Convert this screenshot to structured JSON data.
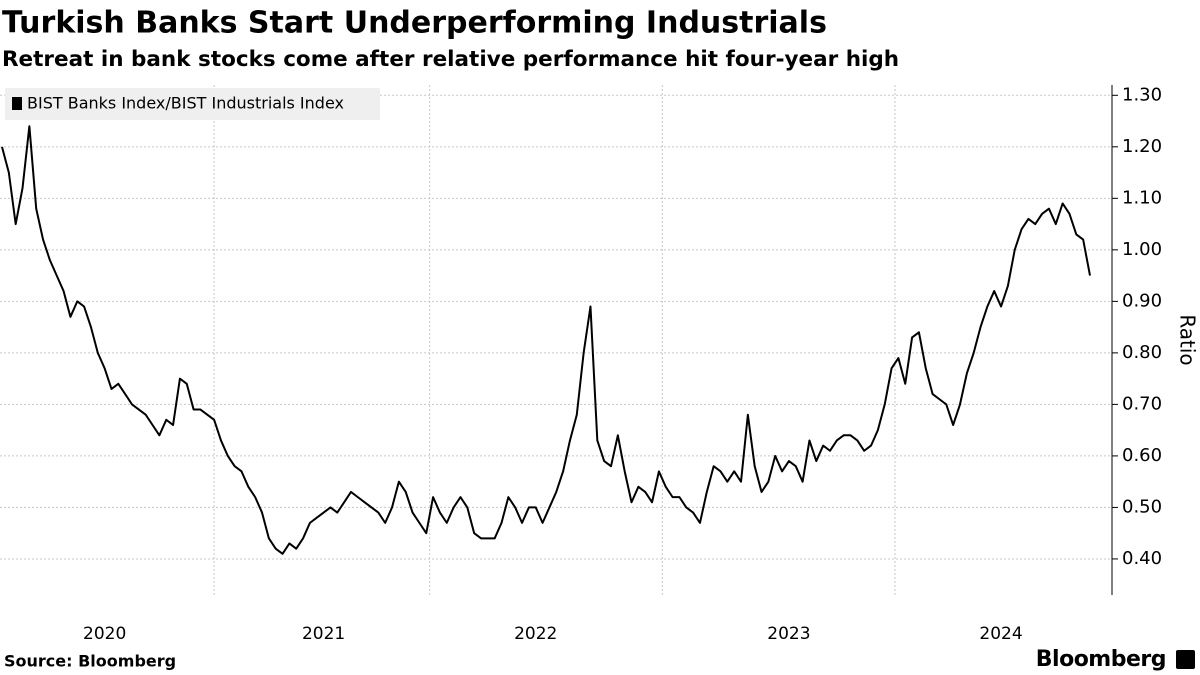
{
  "chart_data": {
    "type": "line",
    "title": "Turkish Banks Start Underperforming Industrials",
    "subtitle": "Retreat in bank stocks come after relative performance hit four-year high",
    "y_label": "Ratio",
    "source": "Source: Bloomberg",
    "brand": "Bloomberg",
    "categories": [
      null,
      null,
      null,
      null,
      null,
      null,
      null,
      null,
      null,
      null,
      null,
      null,
      null,
      null,
      null,
      "2020",
      null,
      null,
      null,
      null,
      null,
      null,
      null,
      null,
      null,
      null,
      null,
      null,
      null,
      null,
      null,
      null,
      null,
      null,
      null,
      null,
      null,
      null,
      null,
      null,
      null,
      null,
      null,
      null,
      null,
      null,
      null,
      "2021",
      null,
      null,
      null,
      null,
      null,
      null,
      null,
      null,
      null,
      null,
      null,
      null,
      null,
      null,
      null,
      null,
      null,
      null,
      null,
      null,
      null,
      null,
      null,
      null,
      null,
      null,
      null,
      null,
      null,
      null,
      "2022",
      null,
      null,
      null,
      null,
      null,
      null,
      null,
      null,
      null,
      null,
      null,
      null,
      null,
      null,
      null,
      null,
      null,
      null,
      null,
      null,
      null,
      null,
      null,
      null,
      null,
      null,
      null,
      null,
      null,
      null,
      null,
      null,
      null,
      null,
      null,
      null,
      "2023",
      null,
      null,
      null,
      null,
      null,
      null,
      null,
      null,
      null,
      null,
      null,
      null,
      null,
      null,
      null,
      null,
      null,
      null,
      null,
      null,
      null,
      null,
      null,
      null,
      null,
      null,
      null,
      null,
      null,
      null,
      "2024",
      null,
      null,
      null,
      null,
      null,
      null,
      null,
      null,
      null,
      null,
      null,
      null,
      null
    ],
    "series": [
      {
        "name": "BIST Banks Index/BIST Industrials Index",
        "color": "#000000",
        "values": [
          1.2,
          1.15,
          1.05,
          1.12,
          1.24,
          1.08,
          1.02,
          0.98,
          0.95,
          0.92,
          0.87,
          0.9,
          0.89,
          0.85,
          0.8,
          0.77,
          0.73,
          0.74,
          0.72,
          0.7,
          0.69,
          0.68,
          0.66,
          0.64,
          0.67,
          0.66,
          0.75,
          0.74,
          0.69,
          0.69,
          0.68,
          0.67,
          0.63,
          0.6,
          0.58,
          0.57,
          0.54,
          0.52,
          0.49,
          0.44,
          0.42,
          0.41,
          0.43,
          0.42,
          0.44,
          0.47,
          0.48,
          0.49,
          0.5,
          0.49,
          0.51,
          0.53,
          0.52,
          0.51,
          0.5,
          0.49,
          0.47,
          0.5,
          0.55,
          0.53,
          0.49,
          0.47,
          0.45,
          0.52,
          0.49,
          0.47,
          0.5,
          0.52,
          0.5,
          0.45,
          0.44,
          0.44,
          0.44,
          0.47,
          0.52,
          0.5,
          0.47,
          0.5,
          0.5,
          0.47,
          0.5,
          0.53,
          0.57,
          0.63,
          0.68,
          0.8,
          0.89,
          0.63,
          0.59,
          0.58,
          0.64,
          0.57,
          0.51,
          0.54,
          0.53,
          0.51,
          0.57,
          0.54,
          0.52,
          0.52,
          0.5,
          0.49,
          0.47,
          0.53,
          0.58,
          0.57,
          0.55,
          0.57,
          0.55,
          0.68,
          0.58,
          0.53,
          0.55,
          0.6,
          0.57,
          0.59,
          0.58,
          0.55,
          0.63,
          0.59,
          0.62,
          0.61,
          0.63,
          0.64,
          0.64,
          0.63,
          0.61,
          0.62,
          0.65,
          0.7,
          0.77,
          0.79,
          0.74,
          0.83,
          0.84,
          0.77,
          0.72,
          0.71,
          0.7,
          0.66,
          0.7,
          0.76,
          0.8,
          0.85,
          0.89,
          0.92,
          0.89,
          0.93,
          1.0,
          1.04,
          1.06,
          1.05,
          1.07,
          1.08,
          1.05,
          1.09,
          1.07,
          1.03,
          1.02,
          0.95
        ]
      }
    ],
    "ylim": [
      0.33,
      1.32
    ],
    "yticks": [
      {
        "value": 0.4,
        "label": "0.40"
      },
      {
        "value": 0.5,
        "label": "0.50"
      },
      {
        "value": 0.6,
        "label": "0.60"
      },
      {
        "value": 0.7,
        "label": "0.70"
      },
      {
        "value": 0.8,
        "label": "0.80"
      },
      {
        "value": 0.9,
        "label": "0.90"
      },
      {
        "value": 1.0,
        "label": "1.00"
      },
      {
        "value": 1.1,
        "label": "1.10"
      },
      {
        "value": 1.2,
        "label": "1.20"
      },
      {
        "value": 1.3,
        "label": "1.30"
      }
    ],
    "grid": true,
    "legend": "top-left"
  }
}
